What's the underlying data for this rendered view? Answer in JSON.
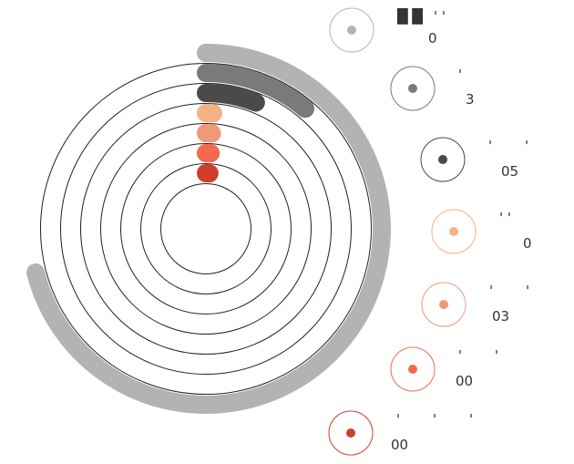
{
  "chart_data": {
    "type": "radial-bar",
    "max_value": 100,
    "series": [
      {
        "value": 71,
        "color": "#b3b3b3",
        "label": "0",
        "fragments": [
          [
            "█ █",
            0
          ],
          [
            "' '",
            1
          ]
        ]
      },
      {
        "value": 11,
        "color": "#7a7a7a",
        "label": "3",
        "fragments": [
          [
            "'",
            0
          ]
        ]
      },
      {
        "value": 6,
        "color": "#4a4a4a",
        "label": "05",
        "fragments": [
          [
            "'",
            0
          ],
          [
            "'",
            1
          ]
        ]
      },
      {
        "value": 1,
        "color": "#f5b385",
        "label": "0",
        "fragments": [
          [
            "' '",
            0
          ]
        ]
      },
      {
        "value": 1,
        "color": "#ef9a76",
        "label": "03",
        "fragments": [
          [
            "'",
            0
          ],
          [
            "'",
            1
          ]
        ]
      },
      {
        "value": 1,
        "color": "#f46a4e",
        "label": "00",
        "fragments": [
          [
            "'",
            0
          ],
          [
            "'",
            1
          ]
        ]
      },
      {
        "value": 1,
        "color": "#d23c2a",
        "label": "00",
        "fragments": [
          [
            "'",
            0
          ],
          [
            "'",
            1
          ],
          [
            "'",
            2
          ]
        ]
      }
    ]
  }
}
